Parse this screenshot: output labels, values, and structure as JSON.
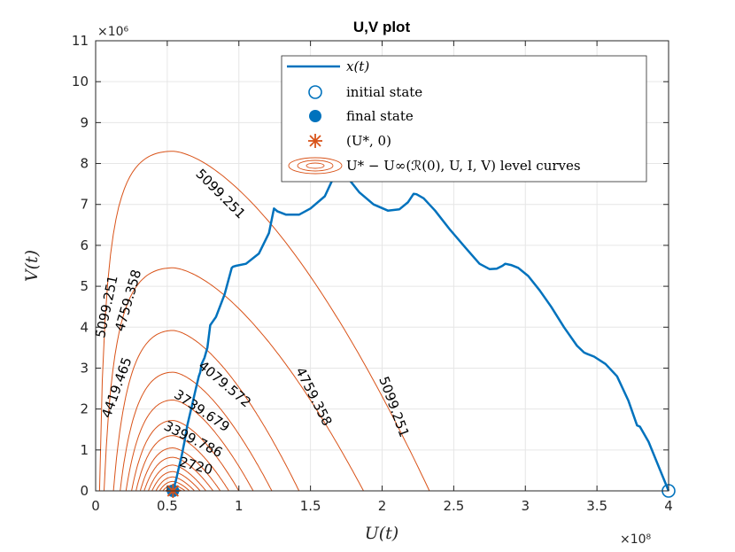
{
  "chart_data": {
    "type": "line",
    "title": "U,V plot",
    "xlabel": "U(t)",
    "ylabel": "V(t)",
    "x_multiplier": "×10⁸",
    "y_multiplier": "×10⁶",
    "xlim": [
      0,
      4.0
    ],
    "ylim": [
      0,
      11
    ],
    "xticks": [
      "0",
      "0.5",
      "1",
      "1.5",
      "2",
      "2.5",
      "3",
      "3.5",
      "4"
    ],
    "yticks": [
      "0",
      "1",
      "2",
      "3",
      "4",
      "5",
      "6",
      "7",
      "8",
      "9",
      "10",
      "11"
    ],
    "grid": true,
    "legend_position": "top-right",
    "colors": {
      "trajectory": "#0072BD",
      "contours": "#D95319",
      "axes": "#262626",
      "grid": "#E6E6E6"
    },
    "series": [
      {
        "name": "x(t)",
        "role": "trajectory",
        "x": [
          4.0,
          3.93,
          3.86,
          3.8,
          3.78,
          3.72,
          3.64,
          3.56,
          3.48,
          3.43,
          3.41,
          3.36,
          3.27,
          3.18,
          3.1,
          3.02,
          2.95,
          2.9,
          2.86,
          2.84,
          2.8,
          2.75,
          2.68,
          2.58,
          2.47,
          2.37,
          2.29,
          2.24,
          2.22,
          2.18,
          2.12,
          2.04,
          1.94,
          1.84,
          1.76,
          1.71,
          1.68,
          1.66,
          1.6,
          1.5,
          1.42,
          1.33,
          1.27,
          1.245,
          1.21,
          1.14,
          1.05,
          0.98,
          0.96,
          0.95,
          0.9,
          0.84,
          0.81,
          0.8,
          0.78,
          0.76,
          0.74,
          0.73,
          0.72,
          0.7,
          0.67,
          0.64,
          0.62,
          0.6,
          0.58,
          0.56,
          0.545,
          0.54
        ],
        "y": [
          0.0,
          0.6,
          1.2,
          1.57,
          1.6,
          2.2,
          2.8,
          3.1,
          3.28,
          3.35,
          3.38,
          3.55,
          4.0,
          4.5,
          4.9,
          5.25,
          5.45,
          5.52,
          5.55,
          5.5,
          5.43,
          5.42,
          5.55,
          5.95,
          6.4,
          6.85,
          7.15,
          7.25,
          7.26,
          7.05,
          6.88,
          6.85,
          7.0,
          7.3,
          7.65,
          7.75,
          7.72,
          7.65,
          7.2,
          6.9,
          6.75,
          6.75,
          6.83,
          6.9,
          6.3,
          5.8,
          5.55,
          5.5,
          5.48,
          5.45,
          4.8,
          4.25,
          4.1,
          4.05,
          3.5,
          3.25,
          3.1,
          2.9,
          2.8,
          2.5,
          2.05,
          1.6,
          1.2,
          0.85,
          0.55,
          0.25,
          0.07,
          0.0
        ]
      }
    ],
    "markers": [
      {
        "name": "initial state",
        "x": 4.0,
        "y": 0.0,
        "symbol": "open-circle"
      },
      {
        "name": "final state",
        "x": 0.54,
        "y": 0.0,
        "symbol": "filled-circle"
      },
      {
        "name": "(U*, 0)",
        "x": 0.54,
        "y": 0.0,
        "symbol": "asterisk"
      }
    ],
    "contours": {
      "name": "U* − U∞(ℛ(0), U, I, V) level curves",
      "center_u": 0.54,
      "outer_u_right": [
        2.33,
        1.87,
        1.42,
        1.23,
        1.1,
        1.0,
        0.93,
        0.87,
        0.82,
        0.77,
        0.73,
        0.69,
        0.655,
        0.625,
        0.6
      ],
      "peak_v": [
        8.3,
        5.45,
        3.92,
        2.9,
        2.22,
        1.72,
        1.35,
        1.05,
        0.82,
        0.63,
        0.47,
        0.34,
        0.23,
        0.14,
        0.07
      ]
    },
    "contour_labels": [
      {
        "text": "5099.251",
        "x": 0.87,
        "y": 7.25,
        "angle": 45
      },
      {
        "text": "5099.251",
        "x": 2.08,
        "y": 2.05,
        "angle": 70
      },
      {
        "text": "5099.251",
        "x": 0.08,
        "y": 4.5,
        "angle": -78
      },
      {
        "text": "4759.358",
        "x": 1.52,
        "y": 2.3,
        "angle": 63
      },
      {
        "text": "4759.358",
        "x": 0.23,
        "y": 4.65,
        "angle": -74
      },
      {
        "text": "4419.465",
        "x": 0.15,
        "y": 2.52,
        "angle": -70
      },
      {
        "text": "4079.572",
        "x": 0.9,
        "y": 2.6,
        "angle": 40
      },
      {
        "text": "3739.679",
        "x": 0.74,
        "y": 1.95,
        "angle": 34
      },
      {
        "text": "3399.786",
        "x": 0.68,
        "y": 1.25,
        "angle": 27
      },
      {
        "text": "2720",
        "x": 0.7,
        "y": 0.6,
        "angle": 15
      }
    ]
  },
  "legend": {
    "items": [
      {
        "label": "x(t)"
      },
      {
        "label": "initial state"
      },
      {
        "label": "final state"
      },
      {
        "label": "(U*, 0)"
      },
      {
        "label": "U* − U∞(ℛ(0), U, I, V) level curves"
      }
    ]
  }
}
